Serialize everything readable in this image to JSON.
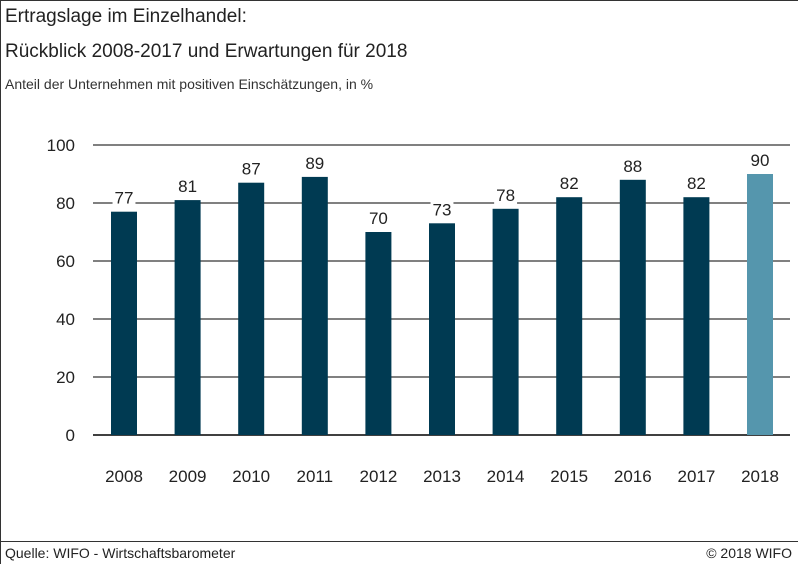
{
  "title_line1": "Ertragslage im Einzelhandel:",
  "title_line2": "Rückblick 2008-2017 und Erwartungen für 2018",
  "subtitle": "Anteil der Unternehmen mit positiven Einschätzungen, in %",
  "source": "Quelle: WIFO - Wirtschaftsbarometer",
  "copyright": "© 2018 WIFO",
  "colors": {
    "bar": "#003a52",
    "highlight": "#5596ad",
    "grid": "#000000"
  },
  "chart_data": {
    "type": "bar",
    "categories": [
      "2008",
      "2009",
      "2010",
      "2011",
      "2012",
      "2013",
      "2014",
      "2015",
      "2016",
      "2017",
      "2018"
    ],
    "values": [
      77,
      81,
      87,
      89,
      70,
      73,
      78,
      82,
      88,
      82,
      90
    ],
    "highlight_category": "2018",
    "ylim": [
      0,
      100
    ],
    "yticks": [
      0,
      20,
      40,
      60,
      80,
      100
    ],
    "grid": true,
    "legend": "none"
  }
}
